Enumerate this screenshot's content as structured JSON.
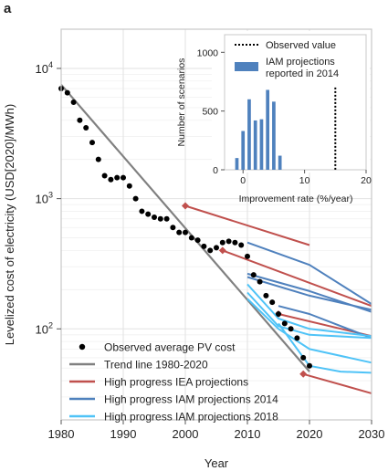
{
  "panel_label": "a",
  "chart_data": [
    {
      "type": "line",
      "xlabel": "Year",
      "ylabel": "Levelized cost of electricity (USD[2020]/MWh)",
      "yscale": "log",
      "xlim": [
        1980,
        2030
      ],
      "ylim": [
        20,
        20000
      ],
      "x_ticks": [
        1980,
        1990,
        2000,
        2010,
        2020,
        2030
      ],
      "y_ticks": [
        {
          "value": 100,
          "base": "10",
          "exp": "2"
        },
        {
          "value": 1000,
          "base": "10",
          "exp": "3"
        },
        {
          "value": 10000,
          "base": "10",
          "exp": "4"
        }
      ],
      "grid": true,
      "legend_position": "bottom-left",
      "legend": [
        {
          "label": "Observed average PV cost",
          "marker": "dot",
          "color": "#000000"
        },
        {
          "label": "Trend line 1980-2020",
          "marker": "line",
          "color": "#808080"
        },
        {
          "label": "High progress IEA projections",
          "marker": "line",
          "color": "#c0504d"
        },
        {
          "label": "High progress IAM projections 2014",
          "marker": "line",
          "color": "#4f81bd"
        },
        {
          "label": "High progress IAM projections 2018",
          "marker": "line",
          "color": "#4fc3f7"
        }
      ],
      "observed": {
        "color": "#000000",
        "x": [
          1980,
          1981,
          1982,
          1983,
          1984,
          1985,
          1986,
          1987,
          1988,
          1989,
          1990,
          1991,
          1992,
          1993,
          1994,
          1995,
          1996,
          1997,
          1998,
          1999,
          2000,
          2001,
          2002,
          2003,
          2004,
          2005,
          2006,
          2007,
          2008,
          2009,
          2010,
          2011,
          2012,
          2013,
          2014,
          2015,
          2016,
          2017,
          2018,
          2019,
          2020
        ],
        "y": [
          7000,
          6500,
          5500,
          4000,
          3500,
          2700,
          2000,
          1500,
          1400,
          1450,
          1450,
          1250,
          1000,
          800,
          760,
          720,
          700,
          700,
          600,
          550,
          550,
          500,
          480,
          430,
          400,
          420,
          460,
          470,
          460,
          440,
          360,
          260,
          230,
          180,
          160,
          130,
          110,
          100,
          85,
          60,
          52
        ]
      },
      "trend": {
        "color": "#808080",
        "x": [
          1980,
          2020
        ],
        "y": [
          7500,
          47
        ]
      },
      "iea_projections": {
        "color": "#c0504d",
        "series": [
          {
            "start": [
              2000,
              880
            ],
            "x": [
              2000,
              2020
            ],
            "y": [
              880,
              440
            ]
          },
          {
            "start": [
              2006,
              400
            ],
            "x": [
              2006,
              2030
            ],
            "y": [
              400,
              150
            ]
          },
          {
            "start": [
              2015,
              130
            ],
            "x": [
              2015,
              2030
            ],
            "y": [
              130,
              88
            ]
          },
          {
            "start": [
              2019,
              45
            ],
            "x": [
              2019,
              2030
            ],
            "y": [
              45,
              32
            ]
          }
        ]
      },
      "iam_2014": {
        "color": "#4f81bd",
        "series": [
          {
            "x": [
              2010,
              2020,
              2030
            ],
            "y": [
              460,
              310,
              155
            ]
          },
          {
            "x": [
              2010,
              2020,
              2030
            ],
            "y": [
              265,
              195,
              135
            ]
          },
          {
            "x": [
              2010,
              2020,
              2030
            ],
            "y": [
              250,
              180,
              140
            ]
          },
          {
            "x": [
              2015,
              2020,
              2030
            ],
            "y": [
              150,
              130,
              85
            ]
          }
        ]
      },
      "iam_2018": {
        "color": "#4fc3f7",
        "series": [
          {
            "x": [
              2010,
              2015,
              2020,
              2030
            ],
            "y": [
              220,
              120,
              100,
              88
            ]
          },
          {
            "x": [
              2010,
              2015,
              2020,
              2030
            ],
            "y": [
              190,
              105,
              90,
              85
            ]
          },
          {
            "x": [
              2010,
              2015,
              2020,
              2030
            ],
            "y": [
              170,
              100,
              70,
              55
            ]
          },
          {
            "x": [
              2015,
              2020,
              2025,
              2030
            ],
            "y": [
              110,
              52,
              47,
              46
            ]
          }
        ]
      }
    },
    {
      "type": "bar",
      "inset": true,
      "xlabel": "Improvement rate (%/year)",
      "ylabel": "Number of scenarios",
      "xlim": [
        -3,
        20
      ],
      "ylim": [
        0,
        1150
      ],
      "x_ticks": [
        0,
        10,
        20
      ],
      "y_ticks": [
        0,
        500,
        1000
      ],
      "legend_position": "top-right",
      "legend": [
        {
          "label": "Observed value",
          "marker": "dotted-line",
          "color": "#000000"
        },
        {
          "label": "IAM projections reported in 2014",
          "marker": "patch",
          "color": "#4f81bd"
        }
      ],
      "bar_color": "#4f81bd",
      "bar_centers": [
        -1,
        0,
        1,
        2,
        3,
        4,
        5,
        6
      ],
      "bar_values": [
        100,
        330,
        600,
        420,
        430,
        680,
        580,
        120
      ],
      "observed_value": 15
    }
  ]
}
